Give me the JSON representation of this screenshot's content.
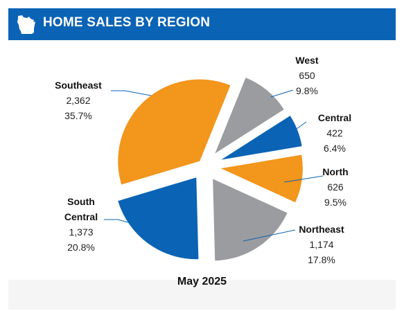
{
  "header": {
    "title": "HOME SALES BY REGION",
    "icon": "wisconsin-state-icon"
  },
  "footer": {
    "date": "May 2025"
  },
  "colors": {
    "header_bg": "#0a63b5",
    "orange": "#f2961c",
    "gray": "#9b9ca0",
    "blue": "#0a63b5",
    "leader": "#0a63b5"
  },
  "chart_data": {
    "type": "pie",
    "title": "HOME SALES BY REGION",
    "subtitle": "May 2025",
    "exploded": true,
    "slices": [
      {
        "name": "West",
        "value": 650,
        "value_label": "650",
        "percent": 9.8,
        "percent_label": "9.8%",
        "color": "#9b9ca0"
      },
      {
        "name": "Central",
        "value": 422,
        "value_label": "422",
        "percent": 6.4,
        "percent_label": "6.4%",
        "color": "#0a63b5"
      },
      {
        "name": "North",
        "value": 626,
        "value_label": "626",
        "percent": 9.5,
        "percent_label": "9.5%",
        "color": "#f2961c"
      },
      {
        "name": "Northeast",
        "value": 1174,
        "value_label": "1,174",
        "percent": 17.8,
        "percent_label": "17.8%",
        "color": "#9b9ca0"
      },
      {
        "name": "South Central",
        "value": 1373,
        "value_label": "1,373",
        "percent": 20.8,
        "percent_label": "20.8%",
        "color": "#0a63b5"
      },
      {
        "name": "Southeast",
        "value": 2362,
        "value_label": "2,362",
        "percent": 35.7,
        "percent_label": "35.7%",
        "color": "#f2961c"
      }
    ]
  }
}
